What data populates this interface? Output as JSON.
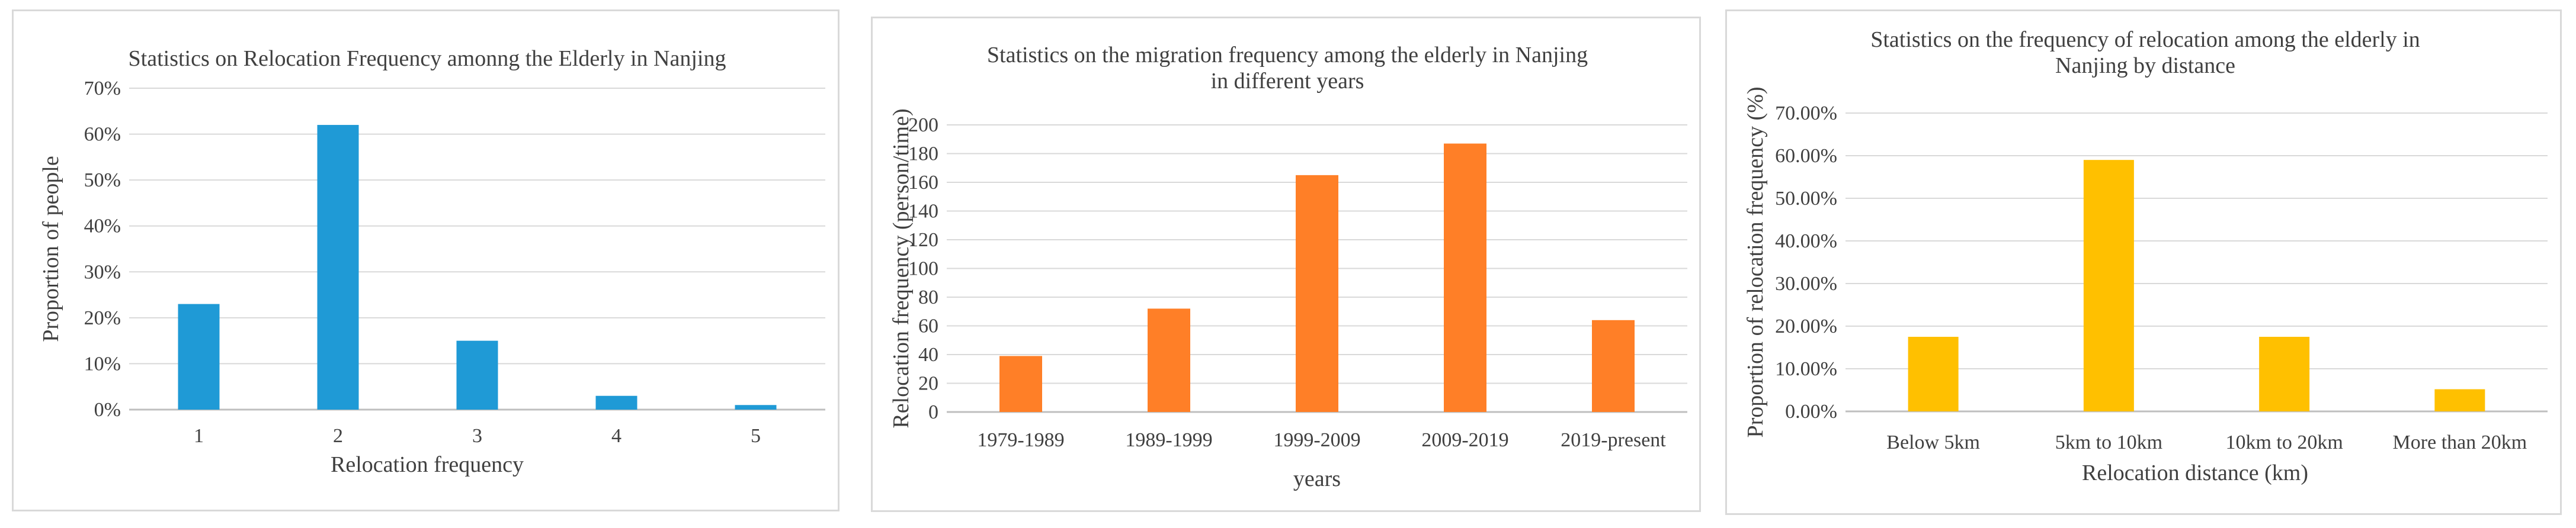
{
  "chart_data": [
    {
      "type": "bar",
      "title": "Statistics on Relocation Frequency amonng the Elderly in Nanjing",
      "xlabel": "Relocation frequency",
      "ylabel": "Proportion of people",
      "categories": [
        "1",
        "2",
        "3",
        "4",
        "5"
      ],
      "values": [
        23,
        62,
        15,
        3,
        1
      ],
      "ylim": [
        0,
        70
      ],
      "yticks": [
        0,
        10,
        20,
        30,
        40,
        50,
        60,
        70
      ],
      "ytick_labels": [
        "0%",
        "10%",
        "20%",
        "30%",
        "40%",
        "50%",
        "60%",
        "70%"
      ],
      "grid": true,
      "color": "#1f9ad6"
    },
    {
      "type": "bar",
      "title": [
        "Statistics on the migration frequency among the elderly in Nanjing",
        "in different years"
      ],
      "xlabel": "years",
      "ylabel": "Relocation frequency (person/time)",
      "categories": [
        "1979-1989",
        "1989-1999",
        "1999-2009",
        "2009-2019",
        "2019-present"
      ],
      "values": [
        39,
        72,
        165,
        187,
        64
      ],
      "ylim": [
        0,
        200
      ],
      "yticks": [
        0,
        20,
        40,
        60,
        80,
        100,
        120,
        140,
        160,
        180,
        200
      ],
      "ytick_labels": [
        "0",
        "20",
        "40",
        "60",
        "80",
        "100",
        "120",
        "140",
        "160",
        "180",
        "200"
      ],
      "grid": true,
      "color": "#ff7f27"
    },
    {
      "type": "bar",
      "title": [
        "Statistics on the frequency of relocation among the elderly in",
        "Nanjing by distance"
      ],
      "xlabel": "Relocation distance (km)",
      "ylabel": "Proportion of relocation frequency (%)",
      "categories": [
        "Below 5km",
        "5km to 10km",
        "10km to 20km",
        "More than 20km"
      ],
      "values": [
        17.5,
        59,
        17.5,
        5.2
      ],
      "ylim": [
        0,
        70
      ],
      "yticks": [
        0,
        10,
        20,
        30,
        40,
        50,
        60,
        70
      ],
      "ytick_labels": [
        "0.00%",
        "10.00%",
        "20.00%",
        "30.00%",
        "40.00%",
        "50.00%",
        "60.00%",
        "70.00%"
      ],
      "grid": true,
      "color": "#ffc000"
    }
  ]
}
